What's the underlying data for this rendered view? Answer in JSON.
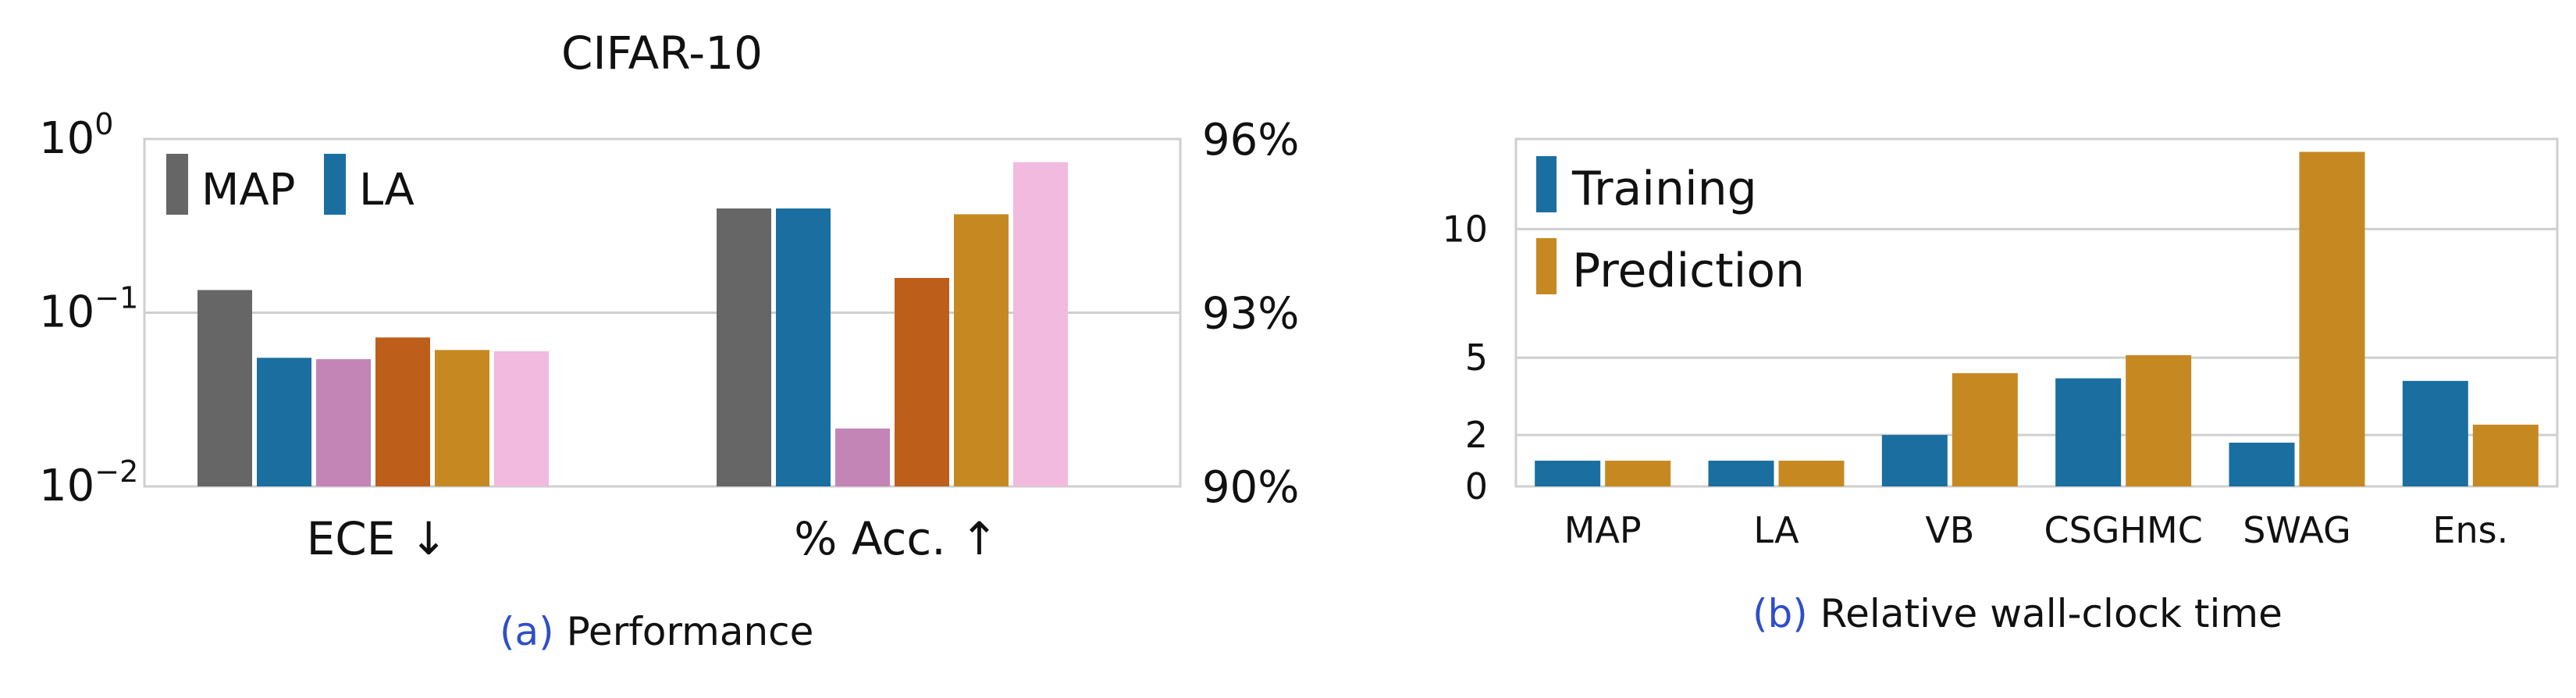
{
  "chart_data": [
    {
      "type": "bar",
      "title": "CIFAR-10",
      "caption_tag": "(a)",
      "caption": "Performance",
      "left_axis": {
        "scale": "log",
        "ylim": [
          0.01,
          1
        ],
        "ticks": [
          0.01,
          0.1,
          1
        ],
        "tick_labels": [
          {
            "base": "10",
            "exp": "−2"
          },
          {
            "base": "10",
            "exp": "−1"
          },
          {
            "base": "10",
            "exp": "0"
          }
        ]
      },
      "right_axis": {
        "ylim": [
          90,
          96
        ],
        "ticks": [
          90,
          93,
          96
        ],
        "tick_labels": [
          "90%",
          "93%",
          "96%"
        ]
      },
      "categories": [
        "ECE ↓",
        "% Acc. ↑"
      ],
      "legend": {
        "placement": "top-left",
        "entries": [
          "MAP",
          "LA"
        ]
      },
      "grid": true,
      "series": [
        {
          "name": "MAP",
          "color": "#666666",
          "ece": 0.135,
          "acc": 94.8
        },
        {
          "name": "LA",
          "color": "#1a6fa0",
          "ece": 0.055,
          "acc": 94.8
        },
        {
          "color": "#c385b5",
          "ece": 0.054,
          "acc": 91.0
        },
        {
          "color": "#bd5e1b",
          "ece": 0.072,
          "acc": 93.6
        },
        {
          "color": "#c68922",
          "ece": 0.061,
          "acc": 94.7
        },
        {
          "color": "#f1bade",
          "ece": 0.06,
          "acc": 95.6
        }
      ]
    },
    {
      "type": "bar",
      "caption_tag": "(b)",
      "caption": "Relative wall-clock time",
      "ylim": [
        0,
        13.5
      ],
      "yticks": [
        0,
        2,
        5,
        10
      ],
      "grid": true,
      "legend": {
        "placement": "top-left",
        "entries": [
          "Training",
          "Prediction"
        ]
      },
      "categories": [
        "MAP",
        "LA",
        "VB",
        "CSGHMC",
        "SWAG",
        "Ens."
      ],
      "series": [
        {
          "name": "Training",
          "color": "#1a6fa0",
          "values": [
            1.0,
            1.0,
            2.0,
            4.2,
            1.7,
            4.1
          ]
        },
        {
          "name": "Prediction",
          "color": "#c68922",
          "values": [
            1.0,
            1.0,
            4.4,
            5.1,
            13.0,
            2.4
          ]
        }
      ]
    }
  ]
}
